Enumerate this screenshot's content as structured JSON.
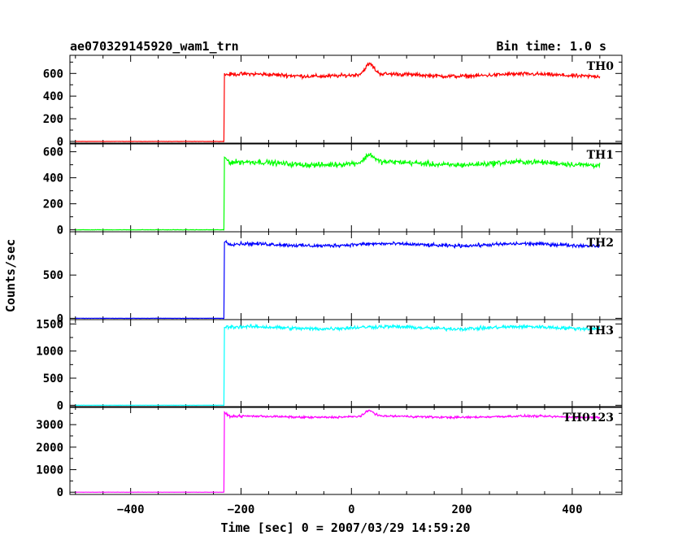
{
  "chart_data": {
    "type": "line",
    "title_left": "ae070329145920_wam1_trn",
    "title_right": "Bin time: 1.0 s",
    "xlabel": "Time [sec] 0 = 2007/03/29 14:59:20",
    "ylabel": "Counts/sec",
    "xlim": [
      -510,
      490
    ],
    "x_ticks": [
      -400,
      -200,
      0,
      200,
      400
    ],
    "x_tick_labels": [
      "−400",
      "−200",
      "0",
      "200",
      "400"
    ],
    "x_range": [
      -500,
      450
    ],
    "onset": -230,
    "series": [
      {
        "name": "TH0",
        "color": "#ff0000",
        "ylim": [
          -15,
          760
        ],
        "yticks": [
          0,
          200,
          400,
          600
        ],
        "pre_level": 0,
        "post_level": 585,
        "noise": 25,
        "spike": {
          "x": 33,
          "height": 90,
          "width": 8
        }
      },
      {
        "name": "TH1",
        "color": "#00ff00",
        "ylim": [
          -15,
          660
        ],
        "yticks": [
          0,
          200,
          400,
          600
        ],
        "pre_level": 0,
        "post_level": 510,
        "noise": 30,
        "spike": {
          "x": 33,
          "height": 60,
          "width": 8
        },
        "peak_start": 550
      },
      {
        "name": "TH2",
        "color": "#0000ff",
        "ylim": [
          -15,
          1000
        ],
        "yticks": [
          0,
          500
        ],
        "pre_level": 0,
        "post_level": 850,
        "noise": 30,
        "spike": null,
        "peak_start": 880
      },
      {
        "name": "TH3",
        "color": "#00ffff",
        "ylim": [
          -40,
          1580
        ],
        "yticks": [
          0,
          500,
          1000,
          1500
        ],
        "pre_level": 0,
        "post_level": 1430,
        "noise": 50,
        "spike": null
      },
      {
        "name": "TH0123",
        "color": "#ff00ff",
        "ylim": [
          -100,
          3800
        ],
        "yticks": [
          0,
          1000,
          2000,
          3000
        ],
        "pre_level": 0,
        "post_level": 3350,
        "noise": 70,
        "spike": {
          "x": 33,
          "height": 250,
          "width": 8
        },
        "peak_start": 3500
      }
    ]
  }
}
